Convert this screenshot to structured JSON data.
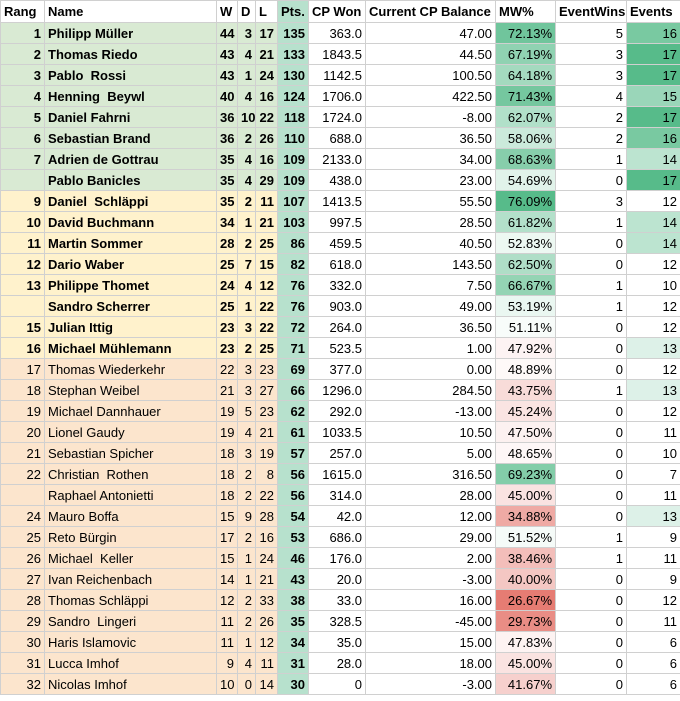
{
  "table": {
    "header": [
      "Rang",
      "Name",
      "W",
      "D",
      "L",
      "Pts.",
      "CP Won",
      "Current CP Balance",
      "MW%",
      "EventWins",
      "Events"
    ],
    "rows": [
      [
        "1",
        "Philipp Müller",
        "44",
        "3",
        "17",
        "135",
        "363.0",
        "47.00",
        "72.13%",
        "5",
        "16"
      ],
      [
        "2",
        "Thomas Riedo",
        "43",
        "4",
        "21",
        "133",
        "1843.5",
        "44.50",
        "67.19%",
        "3",
        "17"
      ],
      [
        "3",
        "Pablo  Rossi",
        "43",
        "1",
        "24",
        "130",
        "1142.5",
        "100.50",
        "64.18%",
        "3",
        "17"
      ],
      [
        "4",
        "Henning  Beywl",
        "40",
        "4",
        "16",
        "124",
        "1706.0",
        "422.50",
        "71.43%",
        "4",
        "15"
      ],
      [
        "5",
        "Daniel Fahrni",
        "36",
        "10",
        "22",
        "118",
        "1724.0",
        "-8.00",
        "62.07%",
        "2",
        "17"
      ],
      [
        "6",
        "Sebastian Brand",
        "36",
        "2",
        "26",
        "110",
        "688.0",
        "36.50",
        "58.06%",
        "2",
        "16"
      ],
      [
        "7",
        "Adrien de Gottrau",
        "35",
        "4",
        "16",
        "109",
        "2133.0",
        "34.00",
        "68.63%",
        "1",
        "14"
      ],
      [
        null,
        "Pablo Banicles",
        "35",
        "4",
        "29",
        "109",
        "438.0",
        "23.00",
        "54.69%",
        "0",
        "17"
      ],
      [
        "9",
        "Daniel  Schläppi",
        "35",
        "2",
        "11",
        "107",
        "1413.5",
        "55.50",
        "76.09%",
        "3",
        "12"
      ],
      [
        "10",
        "David Buchmann",
        "34",
        "1",
        "21",
        "103",
        "997.5",
        "28.50",
        "61.82%",
        "1",
        "14"
      ],
      [
        "11",
        "Martin Sommer",
        "28",
        "2",
        "25",
        "86",
        "459.5",
        "40.50",
        "52.83%",
        "0",
        "14"
      ],
      [
        "12",
        "Dario Waber",
        "25",
        "7",
        "15",
        "82",
        "618.0",
        "143.50",
        "62.50%",
        "0",
        "12"
      ],
      [
        "13",
        "Philippe Thomet",
        "24",
        "4",
        "12",
        "76",
        "332.0",
        "7.50",
        "66.67%",
        "1",
        "10"
      ],
      [
        null,
        "Sandro Scherrer",
        "25",
        "1",
        "22",
        "76",
        "903.0",
        "49.00",
        "53.19%",
        "1",
        "12"
      ],
      [
        "15",
        "Julian Ittig",
        "23",
        "3",
        "22",
        "72",
        "264.0",
        "36.50",
        "51.11%",
        "0",
        "12"
      ],
      [
        "16",
        "Michael Mühlemann",
        "23",
        "2",
        "25",
        "71",
        "523.5",
        "1.00",
        "47.92%",
        "0",
        "13"
      ],
      [
        "17",
        "Thomas Wiederkehr",
        "22",
        "3",
        "23",
        "69",
        "377.0",
        "0.00",
        "48.89%",
        "0",
        "12"
      ],
      [
        "18",
        "Stephan Weibel",
        "21",
        "3",
        "27",
        "66",
        "1296.0",
        "284.50",
        "43.75%",
        "1",
        "13"
      ],
      [
        "19",
        "Michael Dannhauer",
        "19",
        "5",
        "23",
        "62",
        "292.0",
        "-13.00",
        "45.24%",
        "0",
        "12"
      ],
      [
        "20",
        "Lionel Gaudy",
        "19",
        "4",
        "21",
        "61",
        "1033.5",
        "10.50",
        "47.50%",
        "0",
        "11"
      ],
      [
        "21",
        "Sebastian Spicher",
        "18",
        "3",
        "19",
        "57",
        "257.0",
        "5.00",
        "48.65%",
        "0",
        "10"
      ],
      [
        "22",
        "Christian  Rothen",
        "18",
        "2",
        "8",
        "56",
        "1615.0",
        "316.50",
        "69.23%",
        "0",
        "7"
      ],
      [
        null,
        "Raphael Antonietti",
        "18",
        "2",
        "22",
        "56",
        "314.0",
        "28.00",
        "45.00%",
        "0",
        "11"
      ],
      [
        "24",
        "Mauro Boffa",
        "15",
        "9",
        "28",
        "54",
        "42.0",
        "12.00",
        "34.88%",
        "0",
        "13"
      ],
      [
        "25",
        "Reto Bürgin",
        "17",
        "2",
        "16",
        "53",
        "686.0",
        "29.00",
        "51.52%",
        "1",
        "9"
      ],
      [
        "26",
        "Michael  Keller",
        "15",
        "1",
        "24",
        "46",
        "176.0",
        "2.00",
        "38.46%",
        "1",
        "11"
      ],
      [
        "27",
        "Ivan Reichenbach",
        "14",
        "1",
        "21",
        "43",
        "20.0",
        "-3.00",
        "40.00%",
        "0",
        "9"
      ],
      [
        "28",
        "Thomas Schläppi",
        "12",
        "2",
        "33",
        "38",
        "33.0",
        "16.00",
        "26.67%",
        "0",
        "12"
      ],
      [
        "29",
        "Sandro  Lingeri",
        "11",
        "2",
        "26",
        "35",
        "328.5",
        "-45.00",
        "29.73%",
        "0",
        "11"
      ],
      [
        "30",
        "Haris Islamovic",
        "11",
        "1",
        "12",
        "34",
        "35.0",
        "15.00",
        "47.83%",
        "0",
        "6"
      ],
      [
        "31",
        "Lucca Imhof",
        "9",
        "4",
        "11",
        "31",
        "28.0",
        "18.00",
        "45.00%",
        "0",
        "6"
      ],
      [
        "32",
        "Nicolas Imhof",
        "10",
        "0",
        "14",
        "30",
        "0",
        "-3.00",
        "41.67%",
        "0",
        "6"
      ]
    ]
  }
}
